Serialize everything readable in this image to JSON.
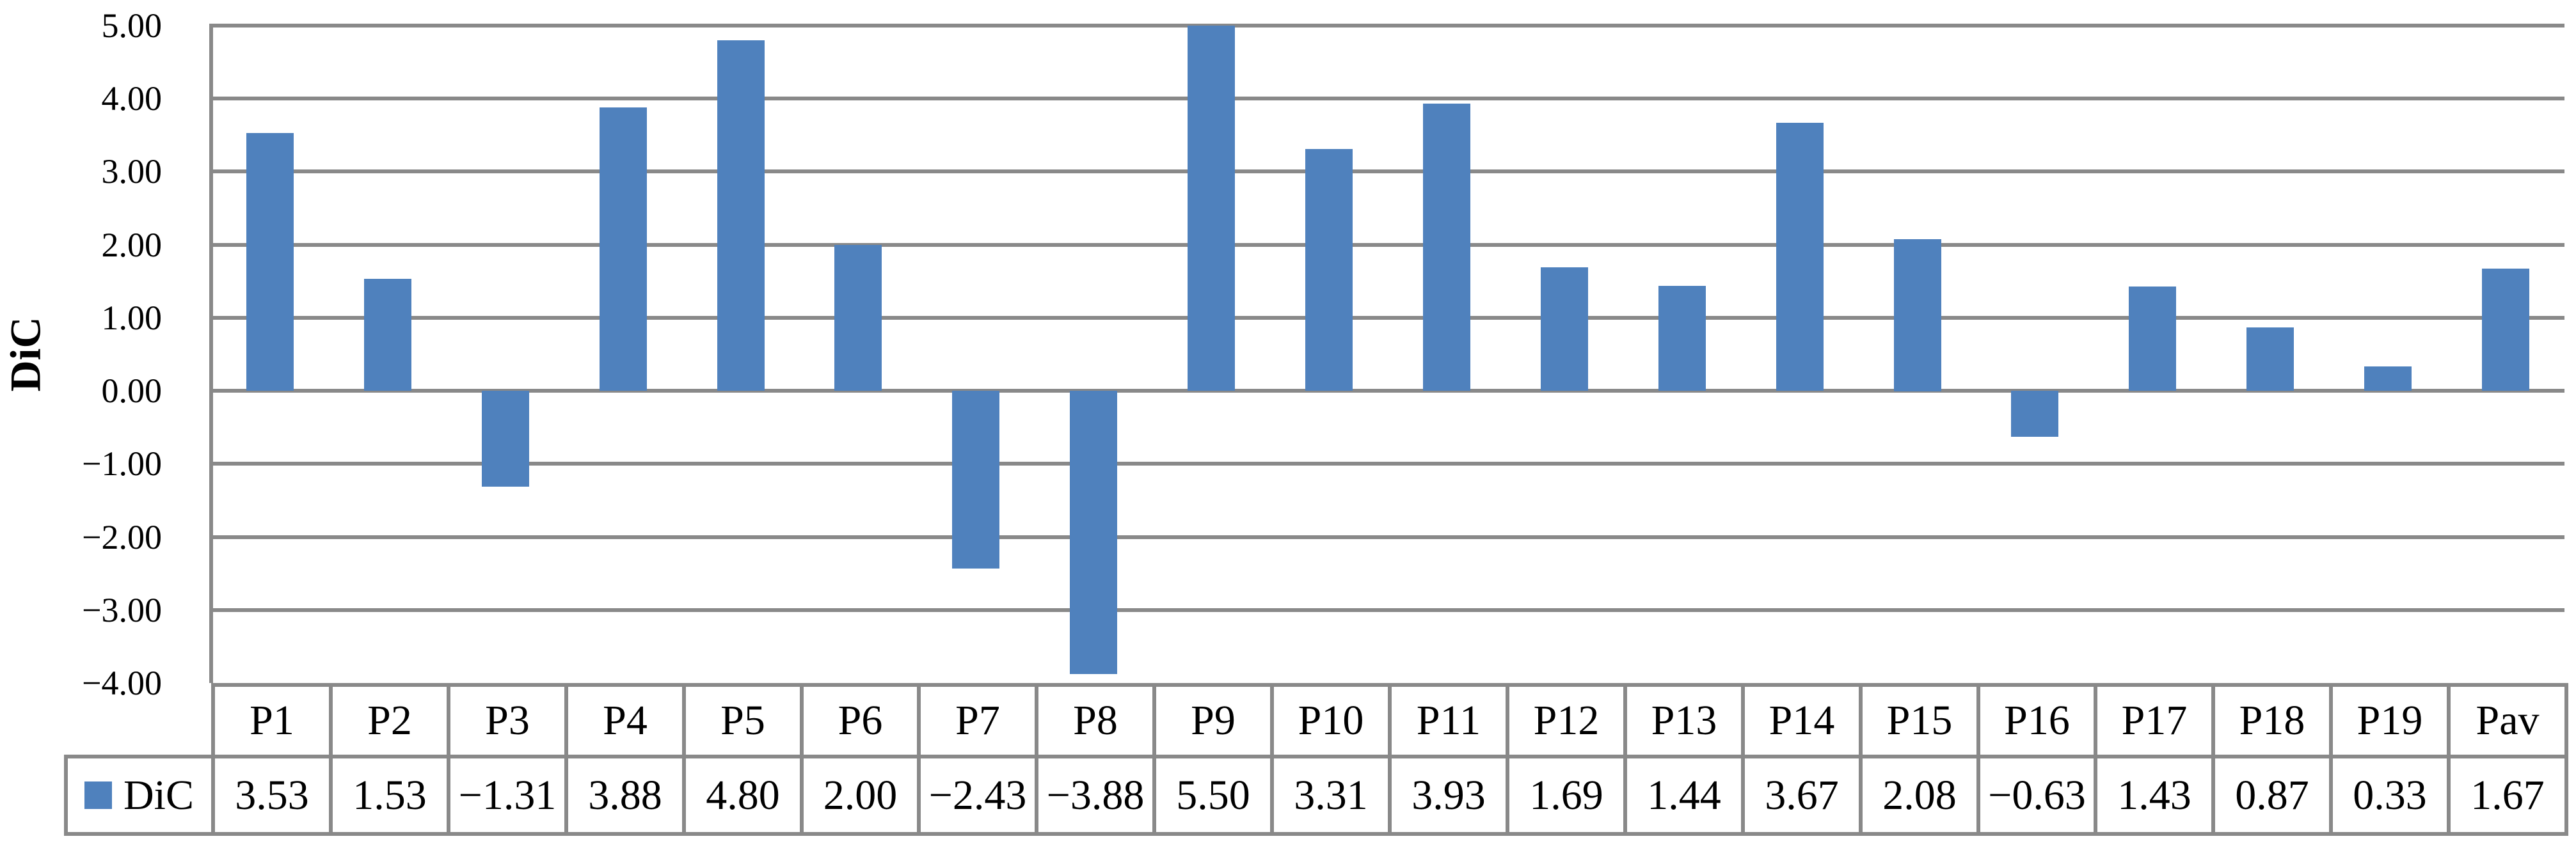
{
  "chart_data": {
    "type": "bar",
    "title": "",
    "xlabel": "",
    "ylabel": "DiC",
    "categories": [
      "P1",
      "P2",
      "P3",
      "P4",
      "P5",
      "P6",
      "P7",
      "P8",
      "P9",
      "P10",
      "P11",
      "P12",
      "P13",
      "P14",
      "P15",
      "P16",
      "P17",
      "P18",
      "P19",
      "Pav"
    ],
    "series": [
      {
        "name": "DiC",
        "values": [
          3.53,
          1.53,
          -1.31,
          3.88,
          4.8,
          2.0,
          -2.43,
          -3.88,
          5.5,
          3.31,
          3.93,
          1.69,
          1.44,
          3.67,
          2.08,
          -0.63,
          1.43,
          0.87,
          0.33,
          1.67
        ],
        "value_labels": [
          "3.53",
          "1.53",
          "−1.31",
          "3.88",
          "4.80",
          "2.00",
          "−2.43",
          "−3.88",
          "5.50",
          "3.31",
          "3.93",
          "1.69",
          "1.44",
          "3.67",
          "2.08",
          "−0.63",
          "1.43",
          "0.87",
          "0.33",
          "1.67"
        ]
      }
    ],
    "ylim": [
      -4,
      5
    ],
    "ytick_step": 1,
    "ytick_labels": [
      "5.00",
      "4.00",
      "3.00",
      "2.00",
      "1.00",
      "0.00",
      "−1.00",
      "−2.00",
      "−3.00",
      "−4.00"
    ],
    "grid": "horizontal-major",
    "legend_position": "data-table-left",
    "colors": {
      "bar": "#4F81BD",
      "line": "#898989",
      "text": "#000000",
      "background": "#FFFFFF"
    }
  }
}
